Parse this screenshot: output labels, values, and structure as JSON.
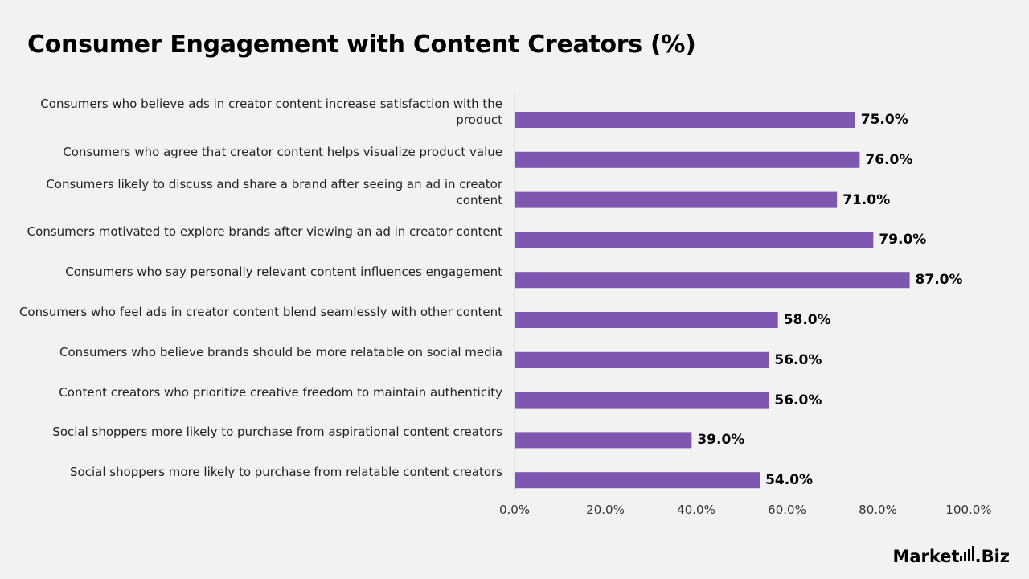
{
  "chart_data": {
    "type": "bar",
    "orientation": "horizontal",
    "title": "Consumer Engagement with Content Creators (%)",
    "categories": [
      "Consumers who believe ads in creator content increase satisfaction with the product",
      "Consumers who agree that creator content helps visualize product value",
      "Consumers likely to discuss and share a brand after seeing an ad in creator content",
      "Consumers motivated to explore brands after viewing an ad in creator content",
      "Consumers who say personally relevant content influences engagement",
      "Consumers who feel ads in creator content blend seamlessly with other content",
      "Consumers who believe brands should be more relatable on social media",
      "Content creators who prioritize creative freedom to maintain authenticity",
      "Social shoppers more likely to purchase from aspirational content creators",
      "Social shoppers more likely to purchase from relatable content creators"
    ],
    "values": [
      75.0,
      76.0,
      71.0,
      79.0,
      87.0,
      58.0,
      56.0,
      56.0,
      39.0,
      54.0
    ],
    "value_labels": [
      "75.0%",
      "76.0%",
      "71.0%",
      "79.0%",
      "87.0%",
      "58.0%",
      "56.0%",
      "56.0%",
      "39.0%",
      "54.0%"
    ],
    "xlim": [
      0,
      100
    ],
    "x_ticks": [
      0,
      20,
      40,
      60,
      80,
      100
    ],
    "x_tick_labels": [
      "0.0%",
      "20.0%",
      "40.0%",
      "60.0%",
      "80.0%",
      "100.0%"
    ],
    "xlabel": "",
    "ylabel": "",
    "grid": false,
    "legend": "none",
    "bar_color": "#7e57b0"
  },
  "branding": {
    "logo_main": "Market",
    "logo_dot": ".",
    "logo_suffix": "Biz"
  }
}
